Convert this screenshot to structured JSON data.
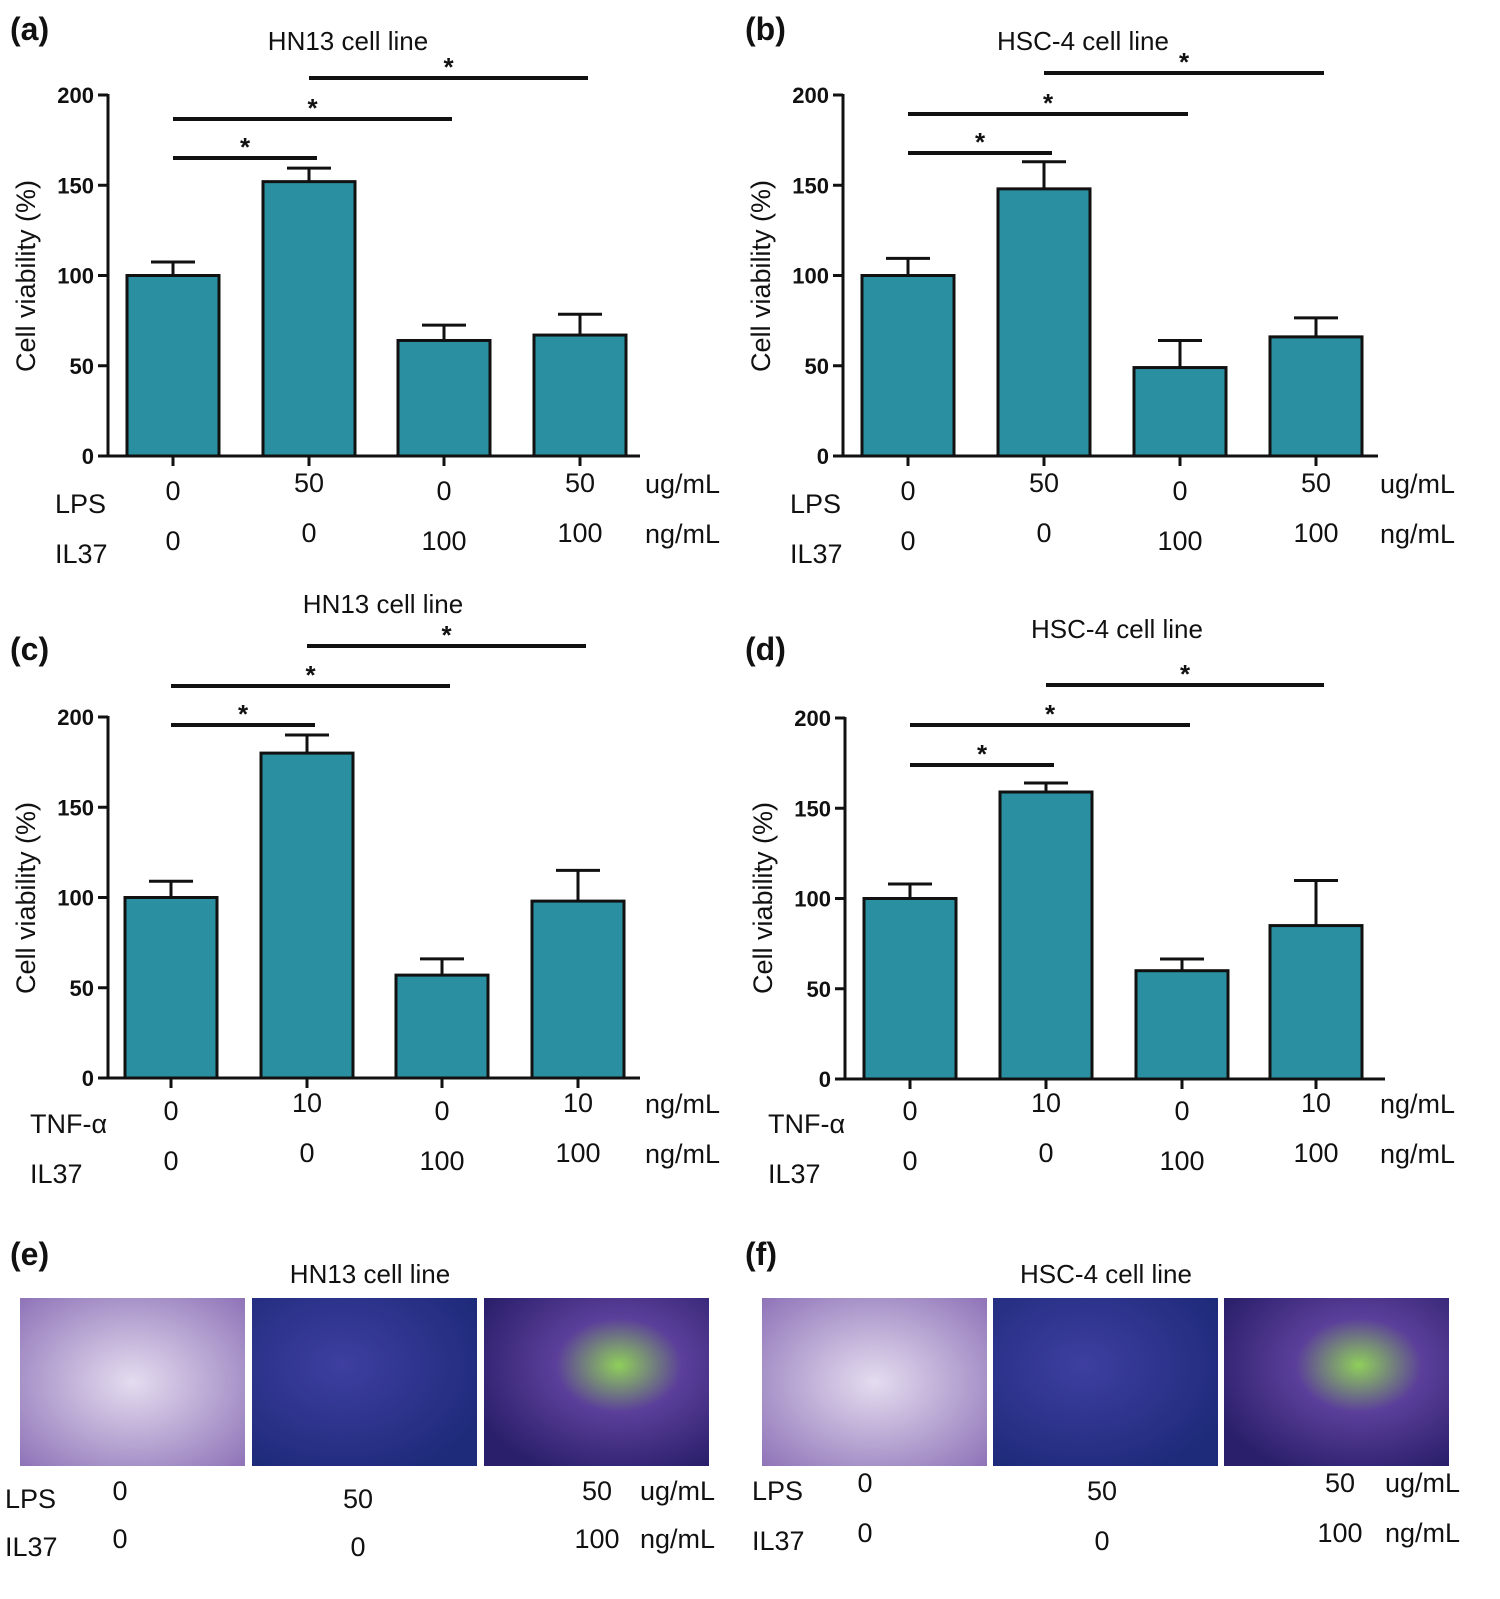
{
  "colors": {
    "bar": "#2a8fa0",
    "bar_edge": "#111111",
    "axis": "#111111"
  },
  "chart_data": [
    {
      "panel": "(a)",
      "type": "bar",
      "title": "HN13 cell line",
      "ylabel": "Cell viability (%)",
      "ylim": [
        0,
        200
      ],
      "yticks": [
        0,
        50,
        100,
        150,
        200
      ],
      "values": [
        100,
        152,
        64,
        67
      ],
      "errors": [
        107.5,
        159.5,
        72.5,
        78.5
      ],
      "rows": [
        {
          "label": "LPS",
          "values": [
            "0",
            "50",
            "0",
            "50"
          ],
          "unit": "ug/mL"
        },
        {
          "label": "IL37",
          "values": [
            "0",
            "0",
            "100",
            "100"
          ],
          "unit": "ng/mL"
        }
      ],
      "significance": [
        {
          "from": 1,
          "to": 2,
          "mark": "*"
        },
        {
          "from": 1,
          "to": 3,
          "mark": "*"
        },
        {
          "from": 2,
          "to": 4,
          "mark": "*"
        }
      ]
    },
    {
      "panel": "(b)",
      "type": "bar",
      "title": "HSC-4 cell line",
      "ylabel": "Cell viability (%)",
      "ylim": [
        0,
        200
      ],
      "yticks": [
        0,
        50,
        100,
        150,
        200
      ],
      "values": [
        100,
        148,
        49,
        66
      ],
      "errors": [
        109.5,
        163,
        64,
        76.5
      ],
      "rows": [
        {
          "label": "LPS",
          "values": [
            "0",
            "50",
            "0",
            "50"
          ],
          "unit": "ug/mL"
        },
        {
          "label": "IL37",
          "values": [
            "0",
            "0",
            "100",
            "100"
          ],
          "unit": "ng/mL"
        }
      ],
      "significance": [
        {
          "from": 1,
          "to": 2,
          "mark": "*"
        },
        {
          "from": 1,
          "to": 3,
          "mark": "*"
        },
        {
          "from": 2,
          "to": 4,
          "mark": "*"
        }
      ]
    },
    {
      "panel": "(c)",
      "type": "bar",
      "title": "HN13 cell line",
      "ylabel": "Cell viability (%)",
      "ylim": [
        0,
        200
      ],
      "yticks": [
        0,
        50,
        100,
        150,
        200
      ],
      "values": [
        100,
        180,
        57,
        98
      ],
      "errors": [
        109,
        190,
        66,
        115
      ],
      "rows": [
        {
          "label": "TNF-α",
          "values": [
            "0",
            "10",
            "0",
            "10"
          ],
          "unit": "ng/mL"
        },
        {
          "label": "IL37",
          "values": [
            "0",
            "0",
            "100",
            "100"
          ],
          "unit": "ng/mL"
        }
      ],
      "significance": [
        {
          "from": 1,
          "to": 2,
          "mark": "*"
        },
        {
          "from": 1,
          "to": 3,
          "mark": "*"
        },
        {
          "from": 2,
          "to": 4,
          "mark": "*"
        }
      ]
    },
    {
      "panel": "(d)",
      "type": "bar",
      "title": "HSC-4 cell line",
      "ylabel": "Cell viability (%)",
      "ylim": [
        0,
        200
      ],
      "yticks": [
        0,
        50,
        100,
        150,
        200
      ],
      "values": [
        100,
        159,
        60,
        85
      ],
      "errors": [
        108,
        164,
        66.5,
        110
      ],
      "rows": [
        {
          "label": "TNF-α",
          "values": [
            "0",
            "10",
            "0",
            "10"
          ],
          "unit": "ng/mL"
        },
        {
          "label": "IL37",
          "values": [
            "0",
            "0",
            "100",
            "100"
          ],
          "unit": "ng/mL"
        }
      ],
      "significance": [
        {
          "from": 1,
          "to": 2,
          "mark": "*"
        },
        {
          "from": 1,
          "to": 3,
          "mark": "*"
        },
        {
          "from": 2,
          "to": 4,
          "mark": "*"
        }
      ]
    }
  ],
  "image_panels": [
    {
      "panel": "(e)",
      "title": "HN13 cell line",
      "rows": [
        {
          "label": "LPS",
          "values": [
            "0",
            "50",
            "50"
          ],
          "unit": "ug/mL"
        },
        {
          "label": "IL37",
          "values": [
            "0",
            "0",
            "100"
          ],
          "unit": "ng/mL"
        }
      ]
    },
    {
      "panel": "(f)",
      "title": "HSC-4 cell line",
      "rows": [
        {
          "label": "LPS",
          "values": [
            "0",
            "50",
            "50"
          ],
          "unit": "ug/mL"
        },
        {
          "label": "IL37",
          "values": [
            "0",
            "0",
            "100"
          ],
          "unit": "ng/mL"
        }
      ]
    }
  ]
}
